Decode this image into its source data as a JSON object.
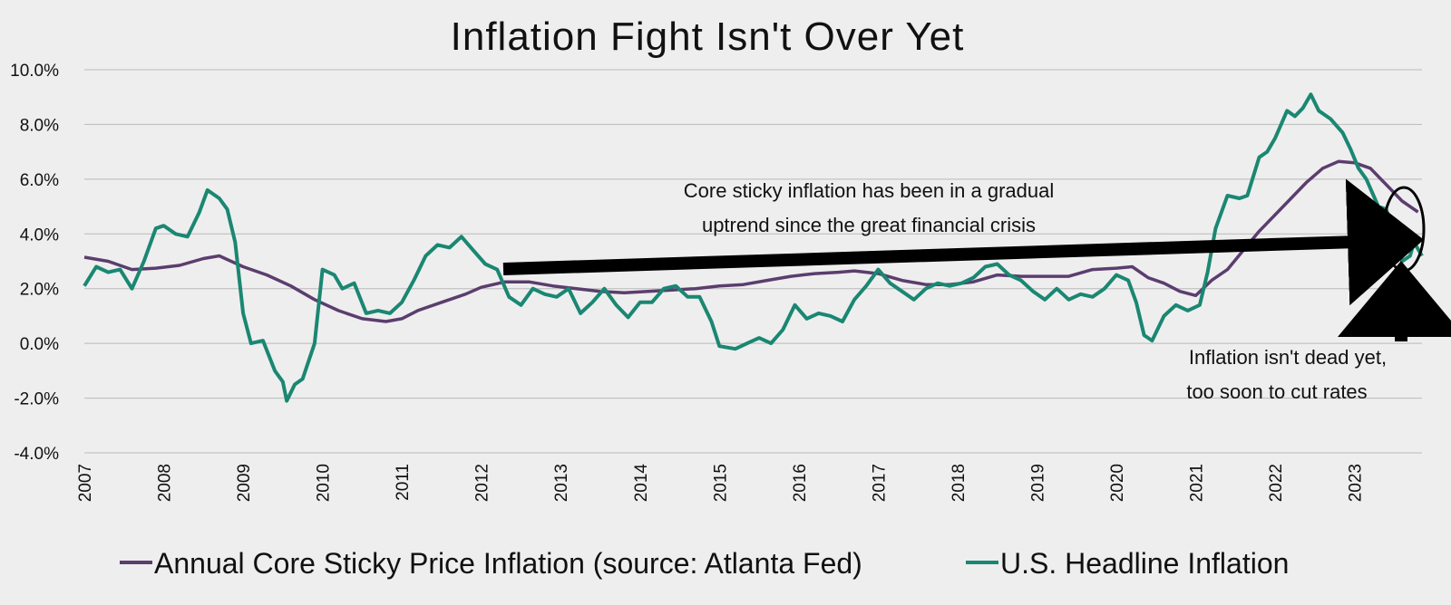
{
  "chart_data": {
    "type": "line",
    "title": "Inflation Fight Isn't Over Yet",
    "xlabel": "",
    "ylabel": "",
    "xlim": [
      2007.0,
      2023.85
    ],
    "ylim": [
      -4,
      10
    ],
    "y_ticks": [
      -4,
      -2,
      0,
      2,
      4,
      6,
      8,
      10
    ],
    "y_tick_labels": [
      "-4.0%",
      "-2.0%",
      "0.0%",
      "2.0%",
      "4.0%",
      "6.0%",
      "8.0%",
      "10.0%"
    ],
    "x_ticks": [
      2007,
      2008,
      2009,
      2010,
      2011,
      2012,
      2013,
      2014,
      2015,
      2016,
      2017,
      2018,
      2019,
      2020,
      2021,
      2022,
      2023
    ],
    "x_tick_labels": [
      "2007",
      "2008",
      "2009",
      "2010",
      "2011",
      "2012",
      "2013",
      "2014",
      "2015",
      "2016",
      "2017",
      "2018",
      "2019",
      "2020",
      "2021",
      "2022",
      "2023"
    ],
    "grid": "horizontal",
    "legend_position": "bottom",
    "series": [
      {
        "name": "Annual Core Sticky Price Inflation (source: Atlanta Fed)",
        "color": "#5b3d6e",
        "points": [
          [
            2007.0,
            3.15
          ],
          [
            2007.3,
            3.0
          ],
          [
            2007.6,
            2.7
          ],
          [
            2007.9,
            2.75
          ],
          [
            2008.2,
            2.85
          ],
          [
            2008.5,
            3.1
          ],
          [
            2008.7,
            3.2
          ],
          [
            2009.0,
            2.8
          ],
          [
            2009.3,
            2.5
          ],
          [
            2009.6,
            2.1
          ],
          [
            2009.9,
            1.6
          ],
          [
            2010.2,
            1.2
          ],
          [
            2010.5,
            0.9
          ],
          [
            2010.8,
            0.8
          ],
          [
            2011.0,
            0.9
          ],
          [
            2011.2,
            1.2
          ],
          [
            2011.5,
            1.5
          ],
          [
            2011.8,
            1.8
          ],
          [
            2012.0,
            2.05
          ],
          [
            2012.3,
            2.25
          ],
          [
            2012.6,
            2.25
          ],
          [
            2012.9,
            2.1
          ],
          [
            2013.2,
            2.0
          ],
          [
            2013.5,
            1.9
          ],
          [
            2013.8,
            1.85
          ],
          [
            2014.1,
            1.9
          ],
          [
            2014.4,
            1.95
          ],
          [
            2014.7,
            2.0
          ],
          [
            2015.0,
            2.1
          ],
          [
            2015.3,
            2.15
          ],
          [
            2015.6,
            2.3
          ],
          [
            2015.9,
            2.45
          ],
          [
            2016.2,
            2.55
          ],
          [
            2016.5,
            2.6
          ],
          [
            2016.7,
            2.65
          ],
          [
            2017.0,
            2.55
          ],
          [
            2017.3,
            2.3
          ],
          [
            2017.6,
            2.15
          ],
          [
            2017.9,
            2.15
          ],
          [
            2018.2,
            2.25
          ],
          [
            2018.5,
            2.5
          ],
          [
            2018.8,
            2.45
          ],
          [
            2019.1,
            2.45
          ],
          [
            2019.4,
            2.45
          ],
          [
            2019.7,
            2.7
          ],
          [
            2020.0,
            2.75
          ],
          [
            2020.2,
            2.8
          ],
          [
            2020.4,
            2.4
          ],
          [
            2020.6,
            2.2
          ],
          [
            2020.8,
            1.9
          ],
          [
            2021.0,
            1.75
          ],
          [
            2021.2,
            2.3
          ],
          [
            2021.4,
            2.7
          ],
          [
            2021.6,
            3.4
          ],
          [
            2021.8,
            4.1
          ],
          [
            2022.0,
            4.7
          ],
          [
            2022.2,
            5.3
          ],
          [
            2022.4,
            5.9
          ],
          [
            2022.6,
            6.4
          ],
          [
            2022.8,
            6.65
          ],
          [
            2023.0,
            6.6
          ],
          [
            2023.2,
            6.4
          ],
          [
            2023.4,
            5.8
          ],
          [
            2023.6,
            5.2
          ],
          [
            2023.8,
            4.8
          ]
        ]
      },
      {
        "name": "U.S. Headline Inflation",
        "color": "#1a8772",
        "points": [
          [
            2007.0,
            2.1
          ],
          [
            2007.15,
            2.8
          ],
          [
            2007.3,
            2.6
          ],
          [
            2007.45,
            2.7
          ],
          [
            2007.6,
            2.0
          ],
          [
            2007.75,
            3.0
          ],
          [
            2007.9,
            4.2
          ],
          [
            2008.0,
            4.3
          ],
          [
            2008.15,
            4.0
          ],
          [
            2008.3,
            3.9
          ],
          [
            2008.45,
            4.8
          ],
          [
            2008.55,
            5.6
          ],
          [
            2008.7,
            5.3
          ],
          [
            2008.8,
            4.9
          ],
          [
            2008.9,
            3.7
          ],
          [
            2009.0,
            1.1
          ],
          [
            2009.1,
            0.0
          ],
          [
            2009.25,
            0.1
          ],
          [
            2009.4,
            -1.0
          ],
          [
            2009.5,
            -1.4
          ],
          [
            2009.55,
            -2.1
          ],
          [
            2009.65,
            -1.5
          ],
          [
            2009.75,
            -1.3
          ],
          [
            2009.9,
            0.0
          ],
          [
            2010.0,
            2.7
          ],
          [
            2010.15,
            2.5
          ],
          [
            2010.25,
            2.0
          ],
          [
            2010.4,
            2.2
          ],
          [
            2010.55,
            1.1
          ],
          [
            2010.7,
            1.2
          ],
          [
            2010.85,
            1.1
          ],
          [
            2011.0,
            1.5
          ],
          [
            2011.15,
            2.3
          ],
          [
            2011.3,
            3.2
          ],
          [
            2011.45,
            3.6
          ],
          [
            2011.6,
            3.5
          ],
          [
            2011.75,
            3.9
          ],
          [
            2011.9,
            3.4
          ],
          [
            2012.05,
            2.9
          ],
          [
            2012.2,
            2.7
          ],
          [
            2012.35,
            1.7
          ],
          [
            2012.5,
            1.4
          ],
          [
            2012.65,
            2.0
          ],
          [
            2012.8,
            1.8
          ],
          [
            2012.95,
            1.7
          ],
          [
            2013.1,
            2.0
          ],
          [
            2013.25,
            1.1
          ],
          [
            2013.4,
            1.5
          ],
          [
            2013.55,
            2.0
          ],
          [
            2013.7,
            1.4
          ],
          [
            2013.85,
            0.95
          ],
          [
            2014.0,
            1.5
          ],
          [
            2014.15,
            1.5
          ],
          [
            2014.3,
            2.0
          ],
          [
            2014.45,
            2.1
          ],
          [
            2014.6,
            1.7
          ],
          [
            2014.75,
            1.7
          ],
          [
            2014.9,
            0.8
          ],
          [
            2015.0,
            -0.1
          ],
          [
            2015.2,
            -0.2
          ],
          [
            2015.35,
            0.0
          ],
          [
            2015.5,
            0.2
          ],
          [
            2015.65,
            0.0
          ],
          [
            2015.8,
            0.5
          ],
          [
            2015.95,
            1.4
          ],
          [
            2016.1,
            0.9
          ],
          [
            2016.25,
            1.1
          ],
          [
            2016.4,
            1.0
          ],
          [
            2016.55,
            0.8
          ],
          [
            2016.7,
            1.6
          ],
          [
            2016.85,
            2.1
          ],
          [
            2017.0,
            2.7
          ],
          [
            2017.15,
            2.2
          ],
          [
            2017.3,
            1.9
          ],
          [
            2017.45,
            1.6
          ],
          [
            2017.6,
            2.0
          ],
          [
            2017.75,
            2.2
          ],
          [
            2017.9,
            2.1
          ],
          [
            2018.05,
            2.2
          ],
          [
            2018.2,
            2.4
          ],
          [
            2018.35,
            2.8
          ],
          [
            2018.5,
            2.9
          ],
          [
            2018.65,
            2.5
          ],
          [
            2018.8,
            2.3
          ],
          [
            2018.95,
            1.9
          ],
          [
            2019.1,
            1.6
          ],
          [
            2019.25,
            2.0
          ],
          [
            2019.4,
            1.6
          ],
          [
            2019.55,
            1.8
          ],
          [
            2019.7,
            1.7
          ],
          [
            2019.85,
            2.0
          ],
          [
            2020.0,
            2.5
          ],
          [
            2020.15,
            2.3
          ],
          [
            2020.25,
            1.5
          ],
          [
            2020.35,
            0.3
          ],
          [
            2020.45,
            0.1
          ],
          [
            2020.6,
            1.0
          ],
          [
            2020.75,
            1.4
          ],
          [
            2020.9,
            1.2
          ],
          [
            2021.05,
            1.4
          ],
          [
            2021.15,
            2.6
          ],
          [
            2021.25,
            4.2
          ],
          [
            2021.4,
            5.4
          ],
          [
            2021.55,
            5.3
          ],
          [
            2021.65,
            5.4
          ],
          [
            2021.8,
            6.8
          ],
          [
            2021.9,
            7.0
          ],
          [
            2022.0,
            7.5
          ],
          [
            2022.15,
            8.5
          ],
          [
            2022.25,
            8.3
          ],
          [
            2022.35,
            8.6
          ],
          [
            2022.45,
            9.1
          ],
          [
            2022.55,
            8.5
          ],
          [
            2022.7,
            8.2
          ],
          [
            2022.85,
            7.7
          ],
          [
            2022.95,
            7.1
          ],
          [
            2023.05,
            6.4
          ],
          [
            2023.15,
            6.0
          ],
          [
            2023.3,
            5.0
          ],
          [
            2023.4,
            4.9
          ],
          [
            2023.5,
            4.0
          ],
          [
            2023.6,
            3.0
          ],
          [
            2023.7,
            3.2
          ],
          [
            2023.75,
            3.7
          ],
          [
            2023.85,
            3.2
          ]
        ]
      }
    ],
    "annotations": [
      {
        "text_lines": [
          "Core sticky inflation has been in a gradual",
          "uptrend since the great financial crisis"
        ]
      },
      {
        "text_lines": [
          "Inflation isn't dead yet,",
          "too soon to cut rates"
        ]
      }
    ]
  }
}
